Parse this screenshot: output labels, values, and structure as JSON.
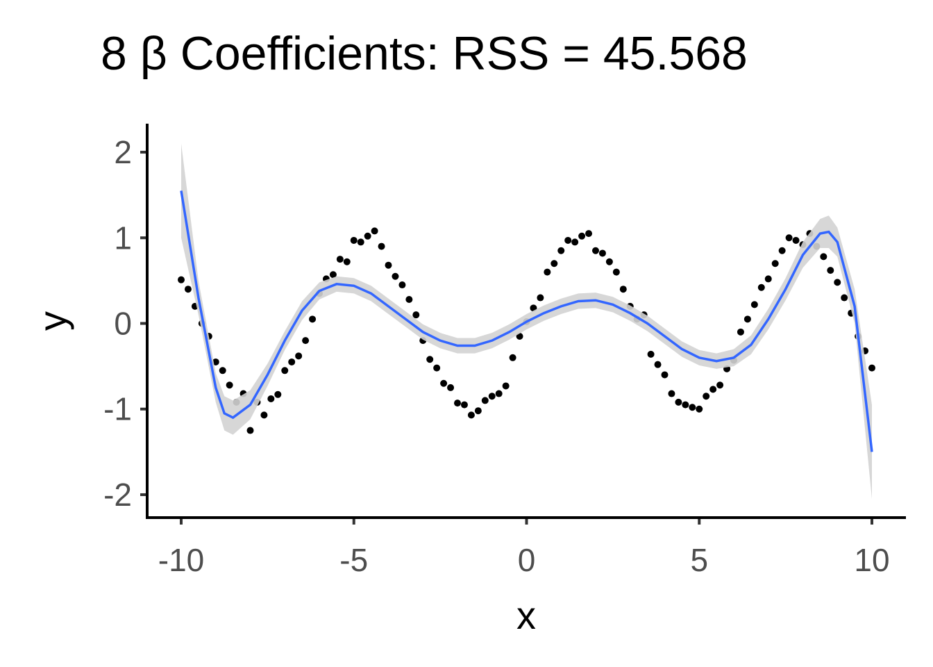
{
  "chart_data": {
    "type": "scatter",
    "title": "8 β Coefficients: RSS = 45.568",
    "x_label": "x",
    "y_label": "y",
    "xlim": [
      -10.985,
      10.985
    ],
    "ylim": [
      -2.268,
      2.333
    ],
    "xticks": [
      -10,
      -5,
      0,
      5,
      10
    ],
    "yticks": [
      -2,
      -1,
      0,
      1,
      2
    ],
    "grid": false,
    "point_color": "#000000",
    "x": [
      -10,
      -9.8,
      -9.6,
      -9.4,
      -9.2,
      -9,
      -8.8,
      -8.6,
      -8.4,
      -8.2,
      -8,
      -7.8,
      -7.6,
      -7.4,
      -7.2,
      -7,
      -6.8,
      -6.6,
      -6.4,
      -6.2,
      -6,
      -5.8,
      -5.6,
      -5.4,
      -5.2,
      -5,
      -4.8,
      -4.6,
      -4.4,
      -4.2,
      -4,
      -3.8,
      -3.6,
      -3.4,
      -3.2,
      -3,
      -2.8,
      -2.6,
      -2.4,
      -2.2,
      -2,
      -1.8,
      -1.6,
      -1.4,
      -1.2,
      -1,
      -0.8,
      -0.6,
      -0.4,
      -0.2,
      0,
      0.2,
      0.4,
      0.6,
      0.8,
      1,
      1.2,
      1.4,
      1.6,
      1.8,
      2,
      2.2,
      2.4,
      2.6,
      2.8,
      3,
      3.2,
      3.4,
      3.6,
      3.8,
      4,
      4.2,
      4.4,
      4.6,
      4.8,
      5,
      5.2,
      5.4,
      5.6,
      5.8,
      6,
      6.2,
      6.4,
      6.6,
      6.8,
      7,
      7.2,
      7.4,
      7.6,
      7.8,
      8,
      8.2,
      8.4,
      8.6,
      8.8,
      9,
      9.2,
      9.4,
      9.6,
      9.8,
      10
    ],
    "values": [
      0.51,
      0.4,
      0.2,
      0.0,
      -0.15,
      -0.45,
      -0.55,
      -0.72,
      -0.92,
      -0.82,
      -1.25,
      -0.92,
      -1.07,
      -0.88,
      -0.83,
      -0.55,
      -0.45,
      -0.38,
      -0.2,
      0.05,
      0.35,
      0.52,
      0.57,
      0.75,
      0.72,
      0.97,
      0.95,
      1.02,
      1.08,
      0.9,
      0.68,
      0.55,
      0.45,
      0.28,
      0.1,
      -0.2,
      -0.42,
      -0.52,
      -0.7,
      -0.75,
      -0.93,
      -0.95,
      -1.07,
      -1.02,
      -0.9,
      -0.85,
      -0.82,
      -0.73,
      -0.4,
      -0.15,
      0.02,
      0.18,
      0.3,
      0.6,
      0.7,
      0.85,
      0.97,
      0.95,
      1.02,
      1.05,
      0.85,
      0.82,
      0.72,
      0.6,
      0.4,
      0.2,
      0.05,
      0.1,
      -0.36,
      -0.48,
      -0.6,
      -0.82,
      -0.92,
      -0.95,
      -0.98,
      -1.0,
      -0.85,
      -0.77,
      -0.72,
      -0.53,
      -0.43,
      -0.1,
      0.05,
      0.22,
      0.42,
      0.52,
      0.7,
      0.85,
      1.0,
      0.97,
      0.92,
      1.05,
      0.9,
      0.78,
      0.62,
      0.48,
      0.3,
      0.12,
      -0.15,
      -0.32,
      -0.52
    ],
    "fit": {
      "color": "#3366ff",
      "band_color": "#d3d3d3",
      "x": [
        -10,
        -9.5,
        -9,
        -8.75,
        -8.5,
        -8,
        -7.5,
        -7,
        -6.5,
        -6,
        -5.5,
        -5,
        -4.5,
        -4,
        -3.5,
        -3,
        -2.5,
        -2,
        -1.5,
        -1,
        -0.5,
        0,
        0.5,
        1,
        1.5,
        2,
        2.5,
        3,
        3.5,
        4,
        4.5,
        5,
        5.5,
        6,
        6.5,
        7,
        7.5,
        8,
        8.5,
        8.75,
        9,
        9.5,
        10
      ],
      "values": [
        1.55,
        0.3,
        -0.75,
        -1.05,
        -1.1,
        -0.95,
        -0.6,
        -0.2,
        0.15,
        0.38,
        0.46,
        0.44,
        0.35,
        0.2,
        0.05,
        -0.1,
        -0.2,
        -0.26,
        -0.26,
        -0.2,
        -0.1,
        0.02,
        0.12,
        0.2,
        0.26,
        0.27,
        0.22,
        0.12,
        0.0,
        -0.15,
        -0.3,
        -0.4,
        -0.44,
        -0.4,
        -0.25,
        0.05,
        0.4,
        0.8,
        1.05,
        1.07,
        0.95,
        0.2,
        -1.5
      ],
      "lower": [
        1.0,
        0.1,
        -0.92,
        -1.25,
        -1.3,
        -1.12,
        -0.73,
        -0.31,
        0.04,
        0.28,
        0.37,
        0.35,
        0.26,
        0.11,
        -0.04,
        -0.19,
        -0.29,
        -0.35,
        -0.35,
        -0.29,
        -0.19,
        -0.07,
        0.03,
        0.11,
        0.17,
        0.18,
        0.13,
        0.03,
        -0.09,
        -0.24,
        -0.39,
        -0.49,
        -0.53,
        -0.5,
        -0.36,
        -0.07,
        0.27,
        0.65,
        0.88,
        0.88,
        0.78,
        0.0,
        -2.05
      ],
      "upper": [
        2.1,
        0.5,
        -0.58,
        -0.85,
        -0.9,
        -0.78,
        -0.47,
        -0.09,
        0.26,
        0.48,
        0.55,
        0.53,
        0.44,
        0.29,
        0.14,
        -0.01,
        -0.11,
        -0.17,
        -0.17,
        -0.11,
        -0.01,
        0.11,
        0.21,
        0.29,
        0.35,
        0.36,
        0.31,
        0.21,
        0.09,
        -0.06,
        -0.21,
        -0.31,
        -0.35,
        -0.3,
        -0.14,
        0.17,
        0.53,
        0.95,
        1.22,
        1.26,
        1.12,
        0.4,
        -0.95
      ]
    }
  }
}
